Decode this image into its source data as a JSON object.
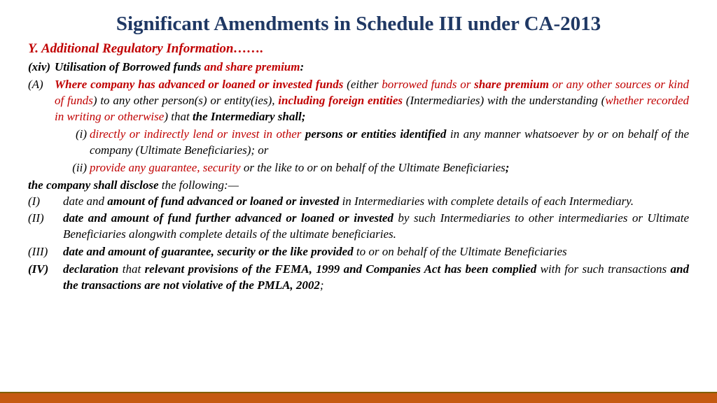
{
  "title": "Significant Amendments in Schedule III under CA-2013",
  "sectionHead": "Y. Additional Regulatory Information…….",
  "xiv": {
    "label": "(xiv)",
    "t1": "Utilisation of Borrowed funds ",
    "t2": "and share premium",
    "t3": ":"
  },
  "A": {
    "label": "(A)",
    "p1": "Where company has advanced or loaned or invested funds ",
    "p2": "(either ",
    "p3": "borrowed funds or ",
    "p4": "share premium ",
    "p5": "or any other sources or kind of funds",
    "p6": ") to any other person(s) or entity(ies), ",
    "p7": "including foreign entities ",
    "p8": "(Intermediaries) with the understanding (",
    "p9": "whether recorded in writing or otherwise",
    "p10": ") that ",
    "p11": "the Intermediary shall;"
  },
  "i": {
    "label": "(i)",
    "p1": "directly or indirectly lend or invest in other ",
    "p2": "persons or entities identified ",
    "p3": "in any manner whatsoever by or on behalf of the company (Ultimate Beneficiaries); or"
  },
  "ii": {
    "label": "(ii)",
    "p1": "provide any guarantee, security ",
    "p2": "or the like to or on behalf of the Ultimate Beneficiaries",
    "p3": ";"
  },
  "disclose": {
    "p1": "the company shall disclose ",
    "p2": "the following:—"
  },
  "I": {
    "label": "(I)",
    "p1": "date and ",
    "p2": "amount of fund advanced or loaned or invested ",
    "p3": "in Intermediaries with complete details of each Intermediary."
  },
  "II": {
    "label": "(II)",
    "p1": "date and amount of fund further advanced or loaned or invested ",
    "p2": "by such Intermediaries to other intermediaries or Ultimate Beneficiaries alongwith complete details of the ultimate beneficiaries."
  },
  "III": {
    "label": "(III)",
    "p1": "date and amount of guarantee, security or the like provided ",
    "p2": "to or on behalf of the Ultimate Beneficiaries"
  },
  "IV": {
    "label": "(IV)",
    "p1": "declaration ",
    "p2": "that ",
    "p3": "relevant provisions of the FEMA, 1999 and Companies Act has been complied ",
    "p4": "with for such transactions ",
    "p5": "and the transactions are not violative of the PMLA, 2002",
    "p6": ";"
  },
  "colors": {
    "title": "#1f3864",
    "red": "#c00000",
    "footer": "#c55a11",
    "footerBorder": "#806000"
  }
}
